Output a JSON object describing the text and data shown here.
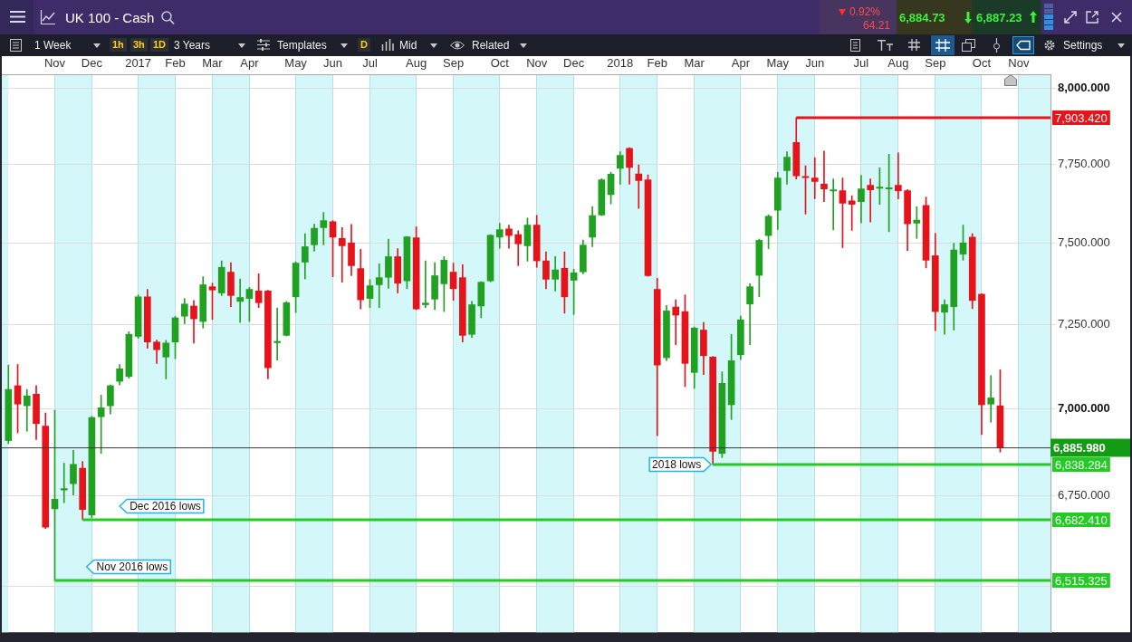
{
  "chart_data": {
    "type": "candlestick",
    "title": "UK 100 - Cash",
    "x": [
      "2016-10-01",
      "2016-10-08",
      "2016-10-15",
      "2016-10-22",
      "2016-10-29",
      "2016-11-05",
      "2016-11-12",
      "2016-11-19",
      "2016-11-26",
      "2016-12-03",
      "2016-12-10",
      "2016-12-17",
      "2016-12-24",
      "2016-12-31",
      "2017-01-07",
      "2017-01-14",
      "2017-01-21",
      "2017-01-28",
      "2017-02-04",
      "2017-02-11",
      "2017-02-18",
      "2017-02-25",
      "2017-03-04",
      "2017-03-11",
      "2017-03-18",
      "2017-03-25",
      "2017-04-01",
      "2017-04-08",
      "2017-04-15",
      "2017-04-22",
      "2017-04-29",
      "2017-05-06",
      "2017-05-13",
      "2017-05-20",
      "2017-05-27",
      "2017-06-03",
      "2017-06-10",
      "2017-06-17",
      "2017-06-24",
      "2017-07-01",
      "2017-07-08",
      "2017-07-15",
      "2017-07-22",
      "2017-07-29",
      "2017-08-05",
      "2017-08-12",
      "2017-08-19",
      "2017-08-26",
      "2017-09-02",
      "2017-09-09",
      "2017-09-16",
      "2017-09-23",
      "2017-09-30",
      "2017-10-07",
      "2017-10-14",
      "2017-10-21",
      "2017-10-28",
      "2017-11-04",
      "2017-11-11",
      "2017-11-18",
      "2017-11-25",
      "2017-12-02",
      "2017-12-09",
      "2017-12-16",
      "2017-12-23",
      "2017-12-30",
      "2018-01-06",
      "2018-01-13",
      "2018-01-20",
      "2018-01-27",
      "2018-02-03",
      "2018-02-10",
      "2018-02-17",
      "2018-02-24",
      "2018-03-03",
      "2018-03-10",
      "2018-03-17",
      "2018-03-24",
      "2018-03-31",
      "2018-04-07",
      "2018-04-14",
      "2018-04-21",
      "2018-04-28",
      "2018-05-05",
      "2018-05-12",
      "2018-05-19",
      "2018-05-26",
      "2018-06-02",
      "2018-06-09",
      "2018-06-16",
      "2018-06-23",
      "2018-06-30",
      "2018-07-07",
      "2018-07-14",
      "2018-07-21",
      "2018-07-28",
      "2018-08-04",
      "2018-08-11",
      "2018-08-18",
      "2018-08-25",
      "2018-09-01",
      "2018-09-08",
      "2018-09-15",
      "2018-09-22",
      "2018-09-29",
      "2018-10-06",
      "2018-10-13",
      "2018-10-20"
    ],
    "ohlc": [
      [
        6907,
        7128,
        6898,
        7056
      ],
      [
        7067,
        7130,
        6929,
        7013
      ],
      [
        7008,
        7056,
        6934,
        7037
      ],
      [
        7042,
        7067,
        6910,
        6956
      ],
      [
        6949,
        6987,
        6658,
        6662
      ],
      [
        6713,
        6995,
        6515.325,
        6740
      ],
      [
        6766,
        6842,
        6730,
        6770
      ],
      [
        6784,
        6879,
        6752,
        6839
      ],
      [
        6828,
        6847,
        6682.41,
        6711
      ],
      [
        6696,
        6977,
        6688,
        6974
      ],
      [
        6976,
        7039,
        6870,
        7002
      ],
      [
        7008,
        7069,
        6984,
        7067
      ],
      [
        7080,
        7130,
        7069,
        7117
      ],
      [
        7094,
        7228,
        7089,
        7220
      ],
      [
        7214,
        7340,
        7208,
        7334
      ],
      [
        7334,
        7357,
        7178,
        7197
      ],
      [
        7197,
        7203,
        7133,
        7174
      ],
      [
        7152,
        7202,
        7087,
        7194
      ],
      [
        7197,
        7275,
        7147,
        7270
      ],
      [
        7275,
        7329,
        7252,
        7312
      ],
      [
        7306,
        7323,
        7194,
        7267
      ],
      [
        7259,
        7396,
        7239,
        7371
      ],
      [
        7365,
        7376,
        7265,
        7355
      ],
      [
        7346,
        7445,
        7338,
        7425
      ],
      [
        7410,
        7439,
        7304,
        7338
      ],
      [
        7320,
        7389,
        7256,
        7332
      ],
      [
        7329,
        7363,
        7259,
        7357
      ],
      [
        7352,
        7405,
        7301,
        7316
      ],
      [
        7352,
        7354,
        7087,
        7120
      ],
      [
        7195,
        7300,
        7143,
        7199
      ],
      [
        7217,
        7320,
        7215,
        7316
      ],
      [
        7334,
        7442,
        7286,
        7438
      ],
      [
        7441,
        7530,
        7389,
        7489
      ],
      [
        7495,
        7560,
        7475,
        7547
      ],
      [
        7549,
        7597,
        7495,
        7571
      ],
      [
        7568,
        7571,
        7396,
        7519
      ],
      [
        7515,
        7549,
        7379,
        7492
      ],
      [
        7501,
        7559,
        7399,
        7430
      ],
      [
        7421,
        7481,
        7297,
        7325
      ],
      [
        7329,
        7387,
        7301,
        7368
      ],
      [
        7371,
        7436,
        7301,
        7393
      ],
      [
        7394,
        7513,
        7360,
        7458
      ],
      [
        7458,
        7483,
        7346,
        7376
      ],
      [
        7383,
        7521,
        7359,
        7520
      ],
      [
        7517,
        7551,
        7295,
        7297
      ],
      [
        7310,
        7445,
        7301,
        7315
      ],
      [
        7327,
        7439,
        7295,
        7399
      ],
      [
        7374,
        7458,
        7289,
        7447
      ],
      [
        7410,
        7438,
        7323,
        7359
      ],
      [
        7393,
        7433,
        7197,
        7217
      ],
      [
        7220,
        7320,
        7211,
        7310
      ],
      [
        7306,
        7381,
        7270,
        7379
      ],
      [
        7383,
        7527,
        7380,
        7525
      ],
      [
        7519,
        7563,
        7484,
        7543
      ],
      [
        7545,
        7557,
        7484,
        7524
      ],
      [
        7527,
        7539,
        7430,
        7498
      ],
      [
        7492,
        7579,
        7444,
        7557
      ],
      [
        7557,
        7588,
        7425,
        7445
      ],
      [
        7445,
        7473,
        7359,
        7388
      ],
      [
        7388,
        7458,
        7352,
        7417
      ],
      [
        7422,
        7473,
        7284,
        7334
      ],
      [
        7385,
        7419,
        7280,
        7408
      ],
      [
        7411,
        7510,
        7405,
        7494
      ],
      [
        7519,
        7616,
        7489,
        7587
      ],
      [
        7589,
        7705,
        7587,
        7701
      ],
      [
        7654,
        7725,
        7624,
        7719
      ],
      [
        7738,
        7792,
        7687,
        7780
      ],
      [
        7803,
        7805,
        7687,
        7741
      ],
      [
        7720,
        7749,
        7610,
        7699
      ],
      [
        7701,
        7717,
        7397,
        7399
      ],
      [
        7357,
        7391,
        6921,
        7128
      ],
      [
        7150,
        7308,
        7141,
        7291
      ],
      [
        7303,
        7325,
        7189,
        7278
      ],
      [
        7289,
        7340,
        7064,
        7133
      ],
      [
        7106,
        7242,
        7059,
        7239
      ],
      [
        7233,
        7256,
        7100,
        7156
      ],
      [
        7152,
        7154,
        6838.284,
        6876
      ],
      [
        6870,
        7108,
        6858,
        7074
      ],
      [
        7011,
        7220,
        6968,
        7141
      ],
      [
        7159,
        7275,
        7144,
        7264
      ],
      [
        7312,
        7374,
        7189,
        7365
      ],
      [
        7400,
        7513,
        7334,
        7509
      ],
      [
        7524,
        7589,
        7483,
        7585
      ],
      [
        7604,
        7725,
        7543,
        7707
      ],
      [
        7731,
        7792,
        7687,
        7774
      ],
      [
        7822,
        7903.42,
        7704,
        7714
      ],
      [
        7712,
        7746,
        7592,
        7708
      ],
      [
        7707,
        7773,
        7641,
        7696
      ],
      [
        7687,
        7794,
        7631,
        7672
      ],
      [
        7665,
        7704,
        7542,
        7669
      ],
      [
        7666,
        7707,
        7486,
        7626
      ],
      [
        7634,
        7650,
        7540,
        7623
      ],
      [
        7631,
        7716,
        7564,
        7672
      ],
      [
        7684,
        7704,
        7567,
        7669
      ],
      [
        7674,
        7740,
        7623,
        7678
      ],
      [
        7672,
        7784,
        7536,
        7676
      ],
      [
        7684,
        7788,
        7640,
        7666
      ],
      [
        7666,
        7670,
        7477,
        7561
      ],
      [
        7563,
        7615,
        7515,
        7573
      ],
      [
        7619,
        7646,
        7423,
        7447
      ],
      [
        7461,
        7531,
        7231,
        7289
      ],
      [
        7287,
        7325,
        7220,
        7310
      ],
      [
        7304,
        7500,
        7233,
        7479
      ],
      [
        7466,
        7557,
        7447,
        7501
      ],
      [
        7519,
        7530,
        7298,
        7323
      ],
      [
        7342,
        7344,
        6924,
        7011
      ],
      [
        7013,
        7097,
        6960,
        7031
      ],
      [
        7008,
        7114,
        6874,
        6885.98
      ]
    ],
    "colors": [
      "#21a121",
      "#e5141a",
      "#21a121",
      "#e5141a",
      "#e5141a",
      "#21a121",
      "#21a121",
      "#21a121",
      "#e5141a",
      "#21a121",
      "#21a121",
      "#21a121",
      "#21a121",
      "#21a121",
      "#21a121",
      "#e5141a",
      "#e5141a",
      "#21a121",
      "#21a121",
      "#21a121",
      "#e5141a",
      "#21a121",
      "#e5141a",
      "#21a121",
      "#e5141a",
      "#21a121",
      "#21a121",
      "#e5141a",
      "#e5141a",
      "#21a121",
      "#21a121",
      "#21a121",
      "#21a121",
      "#21a121",
      "#21a121",
      "#e5141a",
      "#e5141a",
      "#e5141a",
      "#e5141a",
      "#21a121",
      "#21a121",
      "#21a121",
      "#e5141a",
      "#21a121",
      "#e5141a",
      "#21a121",
      "#21a121",
      "#21a121",
      "#e5141a",
      "#e5141a",
      "#21a121",
      "#21a121",
      "#21a121",
      "#21a121",
      "#e5141a",
      "#e5141a",
      "#21a121",
      "#e5141a",
      "#e5141a",
      "#21a121",
      "#e5141a",
      "#21a121",
      "#21a121",
      "#21a121",
      "#21a121",
      "#21a121",
      "#21a121",
      "#e5141a",
      "#e5141a",
      "#e5141a",
      "#e5141a",
      "#21a121",
      "#e5141a",
      "#e5141a",
      "#21a121",
      "#e5141a",
      "#e5141a",
      "#21a121",
      "#21a121",
      "#21a121",
      "#21a121",
      "#21a121",
      "#21a121",
      "#21a121",
      "#21a121",
      "#e5141a",
      "#e5141a",
      "#e5141a",
      "#e5141a",
      "#21a121",
      "#e5141a",
      "#e5141a",
      "#21a121",
      "#e5141a",
      "#21a121",
      "#21a121",
      "#e5141a",
      "#e5141a",
      "#21a121",
      "#e5141a",
      "#e5141a",
      "#21a121",
      "#21a121",
      "#21a121",
      "#e5141a",
      "#e5141a",
      "#21a121",
      "#e5141a"
    ],
    "xlim": [
      "2016-09-26",
      "2018-11-27"
    ],
    "xticks": [
      {
        "value": "2016-11-05",
        "label": "Nov"
      },
      {
        "value": "2016-12-03",
        "label": "Dec"
      },
      {
        "value": "2017-01-07",
        "label": "2017"
      },
      {
        "value": "2017-02-04",
        "label": "Feb"
      },
      {
        "value": "2017-03-04",
        "label": "Mar"
      },
      {
        "value": "2017-04-01",
        "label": "Apr"
      },
      {
        "value": "2017-05-06",
        "label": "May"
      },
      {
        "value": "2017-06-03",
        "label": "Jun"
      },
      {
        "value": "2017-07-01",
        "label": "Jul"
      },
      {
        "value": "2017-08-05",
        "label": "Aug"
      },
      {
        "value": "2017-09-02",
        "label": "Sep"
      },
      {
        "value": "2017-10-07",
        "label": "Oct"
      },
      {
        "value": "2017-11-04",
        "label": "Nov"
      },
      {
        "value": "2017-12-02",
        "label": "Dec"
      },
      {
        "value": "2018-01-06",
        "label": "2018"
      },
      {
        "value": "2018-02-03",
        "label": "Feb"
      },
      {
        "value": "2018-03-03",
        "label": "Mar"
      },
      {
        "value": "2018-04-07",
        "label": "Apr"
      },
      {
        "value": "2018-05-05",
        "label": "May"
      },
      {
        "value": "2018-06-02",
        "label": "Jun"
      },
      {
        "value": "2018-07-07",
        "label": "Jul"
      },
      {
        "value": "2018-08-04",
        "label": "Aug"
      },
      {
        "value": "2018-09-01",
        "label": "Sep"
      },
      {
        "value": "2018-10-06",
        "label": "Oct"
      },
      {
        "value": "2018-11-03",
        "label": "Nov"
      }
    ],
    "ylim": [
      6376,
      8048
    ],
    "yticks": [
      {
        "value": 6500,
        "label": null
      },
      {
        "value": 6750,
        "label": "6,750.000"
      },
      {
        "value": 7000,
        "label": "7,000.000"
      },
      {
        "value": 7250,
        "label": "7,250.000"
      },
      {
        "value": 7500,
        "label": "7,500.000"
      },
      {
        "value": 7750,
        "label": "7,750.000"
      },
      {
        "value": 8000,
        "label": "8,000.000"
      }
    ],
    "log": true,
    "grid": true,
    "ref_lines": [
      {
        "axis": "y",
        "value": 7903.42,
        "label": "7,903.420",
        "color": "#e8141c"
      },
      {
        "axis": "y",
        "value": 6885.98,
        "label": "6,885.980",
        "color": "#3a3a3a"
      },
      {
        "axis": "y",
        "value": 6838.284,
        "label": "6,838.284",
        "color": "#22cc22"
      },
      {
        "axis": "y",
        "value": 6682.41,
        "label": "6,682.410",
        "color": "#22cc22"
      },
      {
        "axis": "y",
        "value": 6515.325,
        "label": "6,515.325",
        "color": "#22cc22"
      }
    ],
    "bands": [
      {
        "axis": "x",
        "from": "2016-09-26",
        "to": "2016-10-01",
        "color": "#d4f7fa"
      },
      {
        "axis": "x",
        "from": "2016-11-05",
        "to": "2016-12-03",
        "color": "#d4f7fa"
      },
      {
        "axis": "x",
        "from": "2017-01-07",
        "to": "2017-02-04",
        "color": "#d4f7fa"
      },
      {
        "axis": "x",
        "from": "2017-03-04",
        "to": "2017-04-01",
        "color": "#d4f7fa"
      },
      {
        "axis": "x",
        "from": "2017-05-06",
        "to": "2017-06-03",
        "color": "#d4f7fa"
      },
      {
        "axis": "x",
        "from": "2017-07-01",
        "to": "2017-08-05",
        "color": "#d4f7fa"
      },
      {
        "axis": "x",
        "from": "2017-09-02",
        "to": "2017-10-07",
        "color": "#d4f7fa"
      },
      {
        "axis": "x",
        "from": "2017-11-04",
        "to": "2017-12-02",
        "color": "#d4f7fa"
      },
      {
        "axis": "x",
        "from": "2018-01-06",
        "to": "2018-02-03",
        "color": "#d4f7fa"
      },
      {
        "axis": "x",
        "from": "2018-03-03",
        "to": "2018-04-07",
        "color": "#d4f7fa"
      },
      {
        "axis": "x",
        "from": "2018-05-05",
        "to": "2018-06-02",
        "color": "#d4f7fa"
      },
      {
        "axis": "x",
        "from": "2018-07-07",
        "to": "2018-08-04",
        "color": "#d4f7fa"
      },
      {
        "axis": "x",
        "from": "2018-09-01",
        "to": "2018-10-06",
        "color": "#d4f7fa"
      },
      {
        "axis": "x",
        "from": "2018-11-03",
        "to": "2018-11-27",
        "color": "#d4f7fa"
      }
    ],
    "annotations": [
      "0.92%",
      "64.21",
      "6,884.73",
      "6,887.23",
      "1 Week",
      "1h",
      "3h",
      "1D",
      "3 Years",
      "Templates",
      "D",
      "Mid",
      "Related",
      "Settings",
      {
        "text": "Dec 2016 lows",
        "x": "2016-12-24",
        "y": 6682.41
      },
      {
        "text": "Nov 2016 lows",
        "x": "2016-11-29",
        "y": 6515.325
      },
      {
        "text": "2018 lows",
        "x": "2018-03-17",
        "y": 6838.284
      }
    ]
  }
}
